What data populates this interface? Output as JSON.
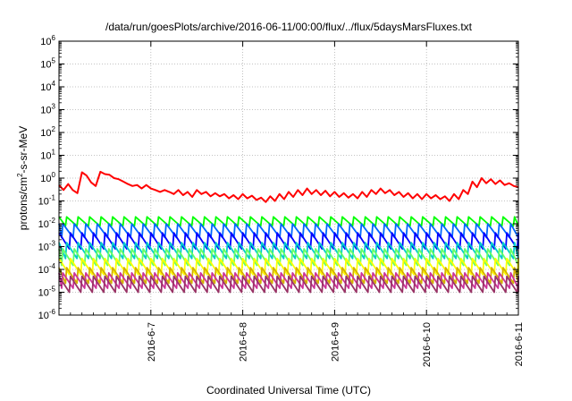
{
  "chart_data": {
    "type": "line",
    "title": "/data/run/goesPlots/archive/2016-06-11/00:00/flux/../flux/5daysMarsFluxes.txt",
    "xlabel": "Coordinated Universal Time (UTC)",
    "ylabel": {
      "base": "protons/cm",
      "sup": "2",
      "rest": "-s-sr-MeV"
    },
    "y_scale": "log",
    "ylim": [
      1e-06,
      1000000.0
    ],
    "xlim": [
      "2016-06-06 00:00",
      "2016-06-11 00:00"
    ],
    "y_ticks": [
      {
        "value": 1e-06,
        "base": "10",
        "exp": "-6"
      },
      {
        "value": 1e-05,
        "base": "10",
        "exp": "-5"
      },
      {
        "value": 0.0001,
        "base": "10",
        "exp": "-4"
      },
      {
        "value": 0.001,
        "base": "10",
        "exp": "-3"
      },
      {
        "value": 0.01,
        "base": "10",
        "exp": "-2"
      },
      {
        "value": 0.1,
        "base": "10",
        "exp": "-1"
      },
      {
        "value": 1,
        "base": "10",
        "exp": "0"
      },
      {
        "value": 10,
        "base": "10",
        "exp": "1"
      },
      {
        "value": 100,
        "base": "10",
        "exp": "2"
      },
      {
        "value": 1000,
        "base": "10",
        "exp": "3"
      },
      {
        "value": 10000,
        "base": "10",
        "exp": "4"
      },
      {
        "value": 100000,
        "base": "10",
        "exp": "5"
      },
      {
        "value": 1000000,
        "base": "10",
        "exp": "6"
      }
    ],
    "x_ticks": [
      "2016-6-7",
      "2016-6-8",
      "2016-6-9",
      "2016-6-10",
      "2016-6-11"
    ],
    "grid": true,
    "legend": "none",
    "series": [
      {
        "color": "#ff0000",
        "x": [
          "2016-06-06 00:00",
          "2016-06-06 01:12",
          "2016-06-06 02:24",
          "2016-06-06 03:36",
          "2016-06-06 04:48",
          "2016-06-06 06:00",
          "2016-06-06 07:12",
          "2016-06-06 08:24",
          "2016-06-06 09:36",
          "2016-06-06 10:48",
          "2016-06-06 12:00",
          "2016-06-06 13:12",
          "2016-06-06 14:24",
          "2016-06-06 15:36",
          "2016-06-06 16:48",
          "2016-06-06 18:00",
          "2016-06-06 19:12",
          "2016-06-06 20:24",
          "2016-06-06 21:36",
          "2016-06-06 22:48",
          "2016-06-07 00:00",
          "2016-06-07 01:12",
          "2016-06-07 02:24",
          "2016-06-07 03:36",
          "2016-06-07 04:48",
          "2016-06-07 06:00",
          "2016-06-07 07:12",
          "2016-06-07 08:24",
          "2016-06-07 09:36",
          "2016-06-07 10:48",
          "2016-06-07 12:00",
          "2016-06-07 13:12",
          "2016-06-07 14:24",
          "2016-06-07 15:36",
          "2016-06-07 16:48",
          "2016-06-07 18:00",
          "2016-06-07 19:12",
          "2016-06-07 20:24",
          "2016-06-07 21:36",
          "2016-06-07 22:48",
          "2016-06-08 00:00",
          "2016-06-08 01:12",
          "2016-06-08 02:24",
          "2016-06-08 03:36",
          "2016-06-08 04:48",
          "2016-06-08 06:00",
          "2016-06-08 07:12",
          "2016-06-08 08:24",
          "2016-06-08 09:36",
          "2016-06-08 10:48",
          "2016-06-08 12:00",
          "2016-06-08 13:12",
          "2016-06-08 14:24",
          "2016-06-08 15:36",
          "2016-06-08 16:48",
          "2016-06-08 18:00",
          "2016-06-08 19:12",
          "2016-06-08 20:24",
          "2016-06-08 21:36",
          "2016-06-08 22:48",
          "2016-06-09 00:00",
          "2016-06-09 01:12",
          "2016-06-09 02:24",
          "2016-06-09 03:36",
          "2016-06-09 04:48",
          "2016-06-09 06:00",
          "2016-06-09 07:12",
          "2016-06-09 08:24",
          "2016-06-09 09:36",
          "2016-06-09 10:48",
          "2016-06-09 12:00",
          "2016-06-09 13:12",
          "2016-06-09 14:24",
          "2016-06-09 15:36",
          "2016-06-09 16:48",
          "2016-06-09 18:00",
          "2016-06-09 19:12",
          "2016-06-09 20:24",
          "2016-06-09 21:36",
          "2016-06-09 22:48",
          "2016-06-10 00:00",
          "2016-06-10 01:12",
          "2016-06-10 02:24",
          "2016-06-10 03:36",
          "2016-06-10 04:48",
          "2016-06-10 06:00",
          "2016-06-10 07:12",
          "2016-06-10 08:24",
          "2016-06-10 09:36",
          "2016-06-10 10:48",
          "2016-06-10 12:00",
          "2016-06-10 13:12",
          "2016-06-10 14:24",
          "2016-06-10 15:36",
          "2016-06-10 16:48",
          "2016-06-10 18:00",
          "2016-06-10 19:12",
          "2016-06-10 20:24",
          "2016-06-10 21:36",
          "2016-06-10 22:48",
          "2016-06-11 00:00"
        ],
        "values": [
          0.5,
          0.3,
          0.55,
          0.3,
          0.22,
          1.8,
          1.3,
          0.65,
          0.45,
          1.9,
          1.5,
          1.4,
          1.0,
          0.9,
          0.7,
          0.55,
          0.45,
          0.5,
          0.35,
          0.5,
          0.35,
          0.3,
          0.25,
          0.3,
          0.25,
          0.2,
          0.3,
          0.18,
          0.25,
          0.15,
          0.3,
          0.2,
          0.25,
          0.16,
          0.22,
          0.16,
          0.2,
          0.13,
          0.18,
          0.12,
          0.2,
          0.13,
          0.17,
          0.11,
          0.14,
          0.09,
          0.16,
          0.1,
          0.2,
          0.12,
          0.25,
          0.15,
          0.3,
          0.18,
          0.35,
          0.2,
          0.3,
          0.18,
          0.28,
          0.16,
          0.25,
          0.15,
          0.22,
          0.14,
          0.2,
          0.13,
          0.25,
          0.15,
          0.3,
          0.2,
          0.35,
          0.22,
          0.3,
          0.18,
          0.25,
          0.15,
          0.22,
          0.13,
          0.2,
          0.12,
          0.2,
          0.13,
          0.18,
          0.12,
          0.16,
          0.1,
          0.2,
          0.12,
          0.3,
          0.2,
          0.7,
          0.4,
          1.0,
          0.6,
          0.9,
          0.55,
          0.8,
          0.5,
          0.6,
          0.45,
          0.4
        ]
      },
      {
        "color": "#00ff00",
        "period_hours": 3.0,
        "peak": 0.02,
        "trough": 0.008
      },
      {
        "color": "#0066ff",
        "period_hours": 3.0,
        "peak": 0.01,
        "trough": 0.0025
      },
      {
        "color": "#0000ff",
        "period_hours": 3.0,
        "peak": 0.004,
        "trough": 0.0008
      },
      {
        "color": "#00cccc",
        "period_hours": 3.0,
        "peak": 0.0015,
        "trough": 0.0003
      },
      {
        "color": "#66ff66",
        "period_hours": 3.0,
        "peak": 0.0008,
        "trough": 0.00015
      },
      {
        "color": "#ffff00",
        "period_hours": 3.0,
        "peak": 0.0003,
        "trough": 6e-05
      },
      {
        "color": "#d4b000",
        "period_hours": 3.0,
        "peak": 0.00012,
        "trough": 2.5e-05
      },
      {
        "color": "#cc3399",
        "period_hours": 3.0,
        "peak": 7e-05,
        "trough": 1.5e-05
      },
      {
        "color": "#993366",
        "period_hours": 3.0,
        "peak": 5e-05,
        "trough": 1e-05
      }
    ]
  }
}
